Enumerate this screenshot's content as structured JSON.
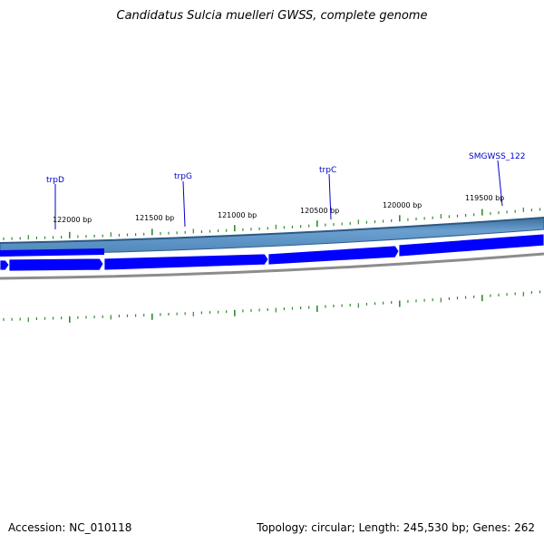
{
  "title": "Candidatus Sulcia muelleri GWSS, complete genome",
  "footer": {
    "accession": "Accession: NC_010118",
    "summary": "Topology: circular; Length: 245,530 bp; Genes: 262"
  },
  "genes": [
    {
      "name": "trpD"
    },
    {
      "name": "trpG"
    },
    {
      "name": "trpC"
    },
    {
      "name": "SMGWSS_122"
    }
  ],
  "bp_ticks": [
    "122000 bp",
    "121500 bp",
    "121000 bp",
    "120500 bp",
    "120000 bp",
    "119500 bp"
  ],
  "colors": {
    "forward_backbone": "#4f86b8",
    "reverse_backbone": "#8c8c8c",
    "gene_arrows": "#0000ff",
    "tick_marks": "#2e8b2e",
    "gene_labels": "#0000cc"
  }
}
